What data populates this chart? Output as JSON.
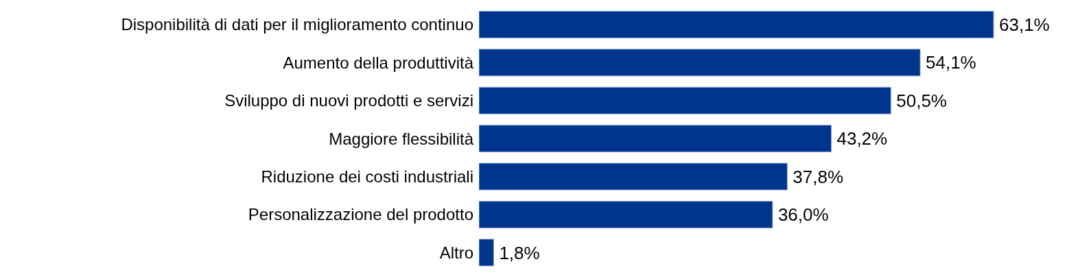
{
  "chart_data": {
    "type": "bar",
    "orientation": "horizontal",
    "categories": [
      "Disponibilità di dati per il miglioramento continuo",
      "Aumento della produttività",
      "Sviluppo di nuovi prodotti e servizi",
      "Maggiore flessibilità",
      "Riduzione dei costi industriali",
      "Personalizzazione del prodotto",
      "Altro"
    ],
    "values": [
      63.1,
      54.1,
      50.5,
      43.2,
      37.8,
      36.0,
      1.8
    ],
    "value_labels": [
      "63,1%",
      "54,1%",
      "50,5%",
      "43,2%",
      "37,8%",
      "36,0%",
      "1,8%"
    ],
    "color": "#00358e",
    "tick_labels": "y",
    "grid": false,
    "legend": false
  }
}
